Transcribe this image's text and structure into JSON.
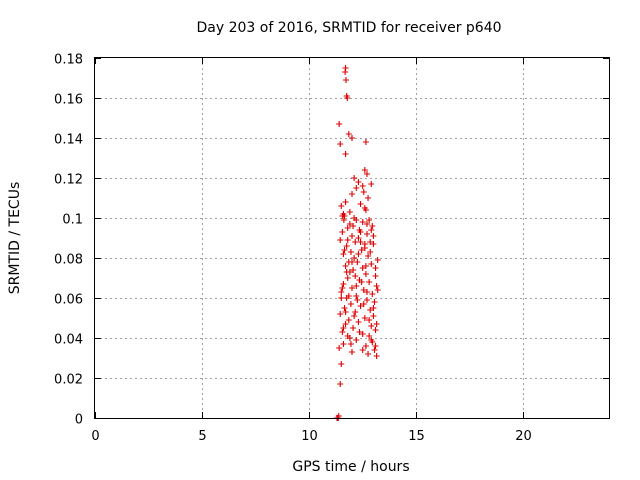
{
  "chart_data": {
    "type": "scatter",
    "title": "Day 203 of 2016, SRMTID for receiver p640",
    "xlabel": "GPS time / hours",
    "ylabel": "SRMTID / TECUs",
    "xlim": [
      0,
      24
    ],
    "ylim": [
      0,
      0.18
    ],
    "xticks": [
      "0",
      "5",
      "10",
      "15",
      "20"
    ],
    "yticks": [
      "0",
      "0.02",
      "0.04",
      "0.06",
      "0.08",
      "0.1",
      "0.12",
      "0.14",
      "0.16",
      "0.18"
    ],
    "xtick_values": [
      0,
      5,
      10,
      15,
      20
    ],
    "ytick_values": [
      0,
      0.02,
      0.04,
      0.06,
      0.08,
      0.1,
      0.12,
      0.14,
      0.16,
      0.18
    ],
    "grid": true,
    "marker": "+",
    "marker_color": "#dd0000",
    "series": [
      {
        "name": "SRMTID",
        "points": [
          [
            11.3,
            0.0
          ],
          [
            11.32,
            0.0
          ],
          [
            11.34,
            0.0
          ],
          [
            11.36,
            0.0
          ],
          [
            11.38,
            0.001
          ],
          [
            11.7,
            0.175
          ],
          [
            11.68,
            0.173
          ],
          [
            11.72,
            0.169
          ],
          [
            11.75,
            0.161
          ],
          [
            11.78,
            0.16
          ],
          [
            11.4,
            0.147
          ],
          [
            11.85,
            0.142
          ],
          [
            12.0,
            0.14
          ],
          [
            12.65,
            0.138
          ],
          [
            11.45,
            0.137
          ],
          [
            11.7,
            0.132
          ],
          [
            12.6,
            0.124
          ],
          [
            12.7,
            0.122
          ],
          [
            12.1,
            0.12
          ],
          [
            12.3,
            0.118
          ],
          [
            12.9,
            0.117
          ],
          [
            12.5,
            0.116
          ],
          [
            12.2,
            0.115
          ],
          [
            12.55,
            0.113
          ],
          [
            12.0,
            0.112
          ],
          [
            12.75,
            0.11
          ],
          [
            11.7,
            0.108
          ],
          [
            12.4,
            0.107
          ],
          [
            11.5,
            0.106
          ],
          [
            12.6,
            0.105
          ],
          [
            12.65,
            0.104
          ],
          [
            11.6,
            0.102
          ],
          [
            11.65,
            0.101
          ],
          [
            12.1,
            0.1
          ],
          [
            12.8,
            0.099
          ],
          [
            12.2,
            0.099
          ],
          [
            12.5,
            0.098
          ],
          [
            11.9,
            0.097
          ],
          [
            12.95,
            0.096
          ],
          [
            11.8,
            0.095
          ],
          [
            12.35,
            0.094
          ],
          [
            11.55,
            0.093
          ],
          [
            12.7,
            0.092
          ],
          [
            12.0,
            0.091
          ],
          [
            12.3,
            0.09
          ],
          [
            11.45,
            0.089
          ],
          [
            12.85,
            0.088
          ],
          [
            12.15,
            0.088
          ],
          [
            13.0,
            0.087
          ],
          [
            11.75,
            0.086
          ],
          [
            12.6,
            0.085
          ],
          [
            12.45,
            0.084
          ],
          [
            11.95,
            0.083
          ],
          [
            11.6,
            0.082
          ],
          [
            12.75,
            0.081
          ],
          [
            12.1,
            0.08
          ],
          [
            13.2,
            0.079
          ],
          [
            11.85,
            0.078
          ],
          [
            12.25,
            0.078
          ],
          [
            12.9,
            0.077
          ],
          [
            11.7,
            0.076
          ],
          [
            12.5,
            0.075
          ],
          [
            12.05,
            0.074
          ],
          [
            11.9,
            0.073
          ],
          [
            12.65,
            0.072
          ],
          [
            13.1,
            0.071
          ],
          [
            11.8,
            0.07
          ],
          [
            12.35,
            0.069
          ],
          [
            12.8,
            0.068
          ],
          [
            11.6,
            0.067
          ],
          [
            13.15,
            0.066
          ],
          [
            12.0,
            0.065
          ],
          [
            12.55,
            0.064
          ],
          [
            11.5,
            0.063
          ],
          [
            12.95,
            0.062
          ],
          [
            12.2,
            0.061
          ],
          [
            11.75,
            0.06
          ],
          [
            12.7,
            0.059
          ],
          [
            13.05,
            0.058
          ],
          [
            11.95,
            0.057
          ],
          [
            12.4,
            0.056
          ],
          [
            11.65,
            0.055
          ],
          [
            12.85,
            0.054
          ],
          [
            12.15,
            0.053
          ],
          [
            11.45,
            0.052
          ],
          [
            13.0,
            0.051
          ],
          [
            12.6,
            0.05
          ],
          [
            11.85,
            0.049
          ],
          [
            12.3,
            0.048
          ],
          [
            11.7,
            0.047
          ],
          [
            12.9,
            0.046
          ],
          [
            12.05,
            0.045
          ],
          [
            13.1,
            0.044
          ],
          [
            11.55,
            0.043
          ],
          [
            12.5,
            0.042
          ],
          [
            12.8,
            0.041
          ],
          [
            11.9,
            0.04
          ],
          [
            12.2,
            0.039
          ],
          [
            12.95,
            0.038
          ],
          [
            11.6,
            0.037
          ],
          [
            12.65,
            0.036
          ],
          [
            11.4,
            0.035
          ],
          [
            13.05,
            0.034
          ],
          [
            12.0,
            0.033
          ],
          [
            12.75,
            0.032
          ],
          [
            13.15,
            0.031
          ],
          [
            11.5,
            0.027
          ],
          [
            11.45,
            0.017
          ],
          [
            11.55,
            0.101
          ],
          [
            11.62,
            0.099
          ],
          [
            11.9,
            0.103
          ],
          [
            12.05,
            0.096
          ],
          [
            12.4,
            0.093
          ],
          [
            12.9,
            0.094
          ],
          [
            13.0,
            0.091
          ],
          [
            11.8,
            0.089
          ],
          [
            12.6,
            0.087
          ],
          [
            11.65,
            0.084
          ],
          [
            12.3,
            0.082
          ],
          [
            12.85,
            0.083
          ],
          [
            13.1,
            0.075
          ],
          [
            11.75,
            0.073
          ],
          [
            12.15,
            0.071
          ],
          [
            12.45,
            0.068
          ],
          [
            11.55,
            0.065
          ],
          [
            12.7,
            0.063
          ],
          [
            13.2,
            0.064
          ],
          [
            11.85,
            0.061
          ],
          [
            12.25,
            0.059
          ],
          [
            12.55,
            0.057
          ],
          [
            13.0,
            0.055
          ],
          [
            11.7,
            0.053
          ],
          [
            12.1,
            0.051
          ],
          [
            12.8,
            0.049
          ],
          [
            13.15,
            0.047
          ],
          [
            11.6,
            0.045
          ],
          [
            12.35,
            0.043
          ],
          [
            12.9,
            0.039
          ],
          [
            11.95,
            0.037
          ],
          [
            13.1,
            0.036
          ],
          [
            12.5,
            0.034
          ],
          [
            11.8,
            0.041
          ],
          [
            12.2,
            0.066
          ],
          [
            12.0,
            0.078
          ],
          [
            12.4,
            0.088
          ],
          [
            12.7,
            0.097
          ],
          [
            11.5,
            0.06
          ],
          [
            12.65,
            0.076
          ]
        ]
      }
    ]
  }
}
